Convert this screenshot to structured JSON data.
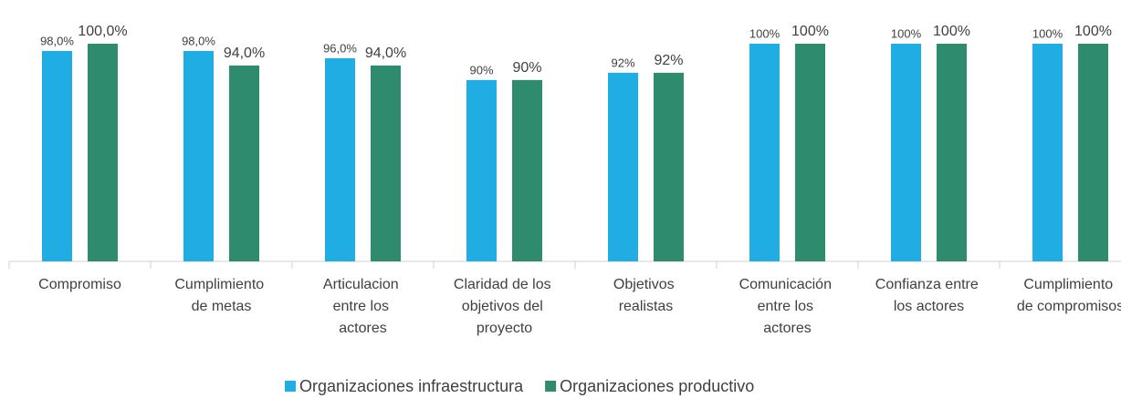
{
  "chart_data": {
    "type": "bar",
    "categories": [
      "Compromiso",
      "Cumplimiento de metas",
      "Articulacion entre los actores",
      "Claridad de los objetivos del proyecto",
      "Objetivos realistas",
      "Comunicación entre los actores",
      "Confianza entre los actores",
      "Cumplimiento de compromisos"
    ],
    "series": [
      {
        "name": "Organizaciones infraestructura",
        "color": "#1fade4",
        "values": [
          98,
          98,
          96,
          90,
          92,
          100,
          100,
          100
        ],
        "value_labels": [
          "98,0%",
          "98,0%",
          "96,0%",
          "90%",
          "92%",
          "100%",
          "100%",
          "100%"
        ]
      },
      {
        "name": "Organizaciones productivo",
        "color": "#2e8b6e",
        "values": [
          100,
          94,
          94,
          90,
          92,
          100,
          100,
          100
        ],
        "value_labels": [
          "100,0%",
          "94,0%",
          "94,0%",
          "90%",
          "92%",
          "100%",
          "100%",
          "100%"
        ]
      }
    ],
    "ylim": [
      40,
      100
    ],
    "legend": "bottom"
  }
}
